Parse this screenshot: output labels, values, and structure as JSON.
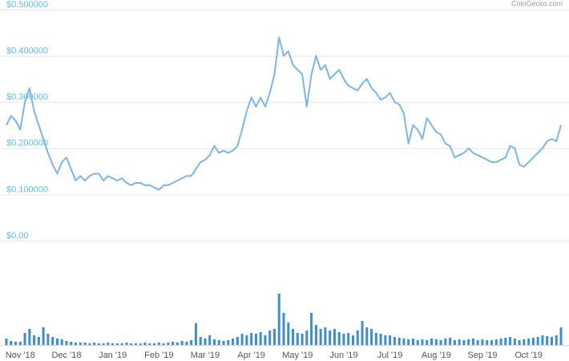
{
  "chart_data": {
    "type": "line",
    "source": "CoinGecko.com",
    "categories": [
      null,
      null,
      null,
      "Nov '18",
      null,
      null,
      null,
      null,
      null,
      null,
      null,
      null,
      null,
      "Dec '18",
      null,
      null,
      null,
      null,
      null,
      null,
      null,
      null,
      null,
      "Jan '19",
      null,
      null,
      null,
      null,
      null,
      null,
      null,
      null,
      null,
      "Feb '19",
      null,
      null,
      null,
      null,
      null,
      null,
      null,
      null,
      null,
      "Mar '19",
      null,
      null,
      null,
      null,
      null,
      null,
      null,
      null,
      null,
      "Apr '19",
      null,
      null,
      null,
      null,
      null,
      null,
      null,
      null,
      null,
      "May '19",
      null,
      null,
      null,
      null,
      null,
      null,
      null,
      null,
      null,
      "Jun '19",
      null,
      null,
      null,
      null,
      null,
      null,
      null,
      null,
      null,
      "Jul '19",
      null,
      null,
      null,
      null,
      null,
      null,
      null,
      null,
      null,
      "Aug '19",
      null,
      null,
      null,
      null,
      null,
      null,
      null,
      null,
      null,
      "Sep '19",
      null,
      null,
      null,
      null,
      null,
      null,
      null,
      null,
      null,
      "Oct '19",
      null,
      null,
      null,
      null,
      null,
      null,
      null
    ],
    "series": [
      {
        "name": "Price",
        "color": "#7cb5ec",
        "values": [
          0.25,
          0.27,
          0.26,
          0.24,
          0.3,
          0.33,
          0.28,
          0.25,
          0.22,
          0.19,
          0.165,
          0.145,
          0.17,
          0.18,
          0.155,
          0.13,
          0.14,
          0.13,
          0.14,
          0.145,
          0.145,
          0.13,
          0.14,
          0.135,
          0.13,
          0.135,
          0.125,
          0.12,
          0.125,
          0.125,
          0.12,
          0.12,
          0.115,
          0.11,
          0.12,
          0.12,
          0.125,
          0.13,
          0.135,
          0.14,
          0.14,
          0.155,
          0.17,
          0.175,
          0.185,
          0.205,
          0.19,
          0.195,
          0.19,
          0.195,
          0.205,
          0.24,
          0.28,
          0.31,
          0.29,
          0.31,
          0.29,
          0.32,
          0.36,
          0.44,
          0.4,
          0.41,
          0.38,
          0.37,
          0.36,
          0.29,
          0.36,
          0.4,
          0.37,
          0.38,
          0.35,
          0.36,
          0.37,
          0.35,
          0.335,
          0.33,
          0.325,
          0.34,
          0.35,
          0.33,
          0.32,
          0.305,
          0.31,
          0.32,
          0.3,
          0.295,
          0.275,
          0.21,
          0.25,
          0.24,
          0.22,
          0.265,
          0.25,
          0.235,
          0.23,
          0.21,
          0.205,
          0.18,
          0.185,
          0.19,
          0.2,
          0.19,
          0.185,
          0.18,
          0.175,
          0.17,
          0.17,
          0.175,
          0.18,
          0.205,
          0.2,
          0.165,
          0.16,
          0.17,
          0.18,
          0.19,
          0.2,
          0.215,
          0.22,
          0.215,
          0.25
        ]
      },
      {
        "name": "Volume",
        "color": "#3f8dcb",
        "axis": "y2",
        "values": [
          8,
          5,
          4,
          4,
          15,
          20,
          12,
          10,
          22,
          14,
          10,
          8,
          7,
          5,
          4,
          3,
          3,
          3,
          2,
          3,
          2,
          2,
          3,
          2,
          2,
          2,
          3,
          2,
          2,
          2,
          3,
          2,
          2,
          3,
          2,
          3,
          4,
          3,
          5,
          4,
          6,
          27,
          10,
          8,
          12,
          7,
          6,
          5,
          6,
          8,
          10,
          14,
          12,
          15,
          14,
          16,
          12,
          18,
          20,
          64,
          40,
          28,
          20,
          15,
          14,
          18,
          40,
          25,
          20,
          22,
          18,
          20,
          16,
          14,
          15,
          12,
          18,
          30,
          22,
          20,
          15,
          14,
          12,
          12,
          10,
          9,
          8,
          7,
          8,
          6,
          7,
          6,
          8,
          7,
          6,
          8,
          9,
          6,
          7,
          6,
          7,
          8,
          6,
          7,
          6,
          6,
          7,
          8,
          9,
          10,
          8,
          6,
          7,
          8,
          9,
          10,
          12,
          11,
          10,
          12,
          22
        ]
      }
    ],
    "ylim": [
      0,
      0.5
    ],
    "yticks": [
      {
        "value": 0,
        "label": "$0.00"
      },
      {
        "value": 0.1,
        "label": "$0.100000"
      },
      {
        "value": 0.2,
        "label": "$0.200000"
      },
      {
        "value": 0.3,
        "label": "$0.300000"
      },
      {
        "value": 0.4,
        "label": "$0.400000"
      },
      {
        "value": 0.5,
        "label": "$0.500000"
      }
    ],
    "y2lim": [
      0,
      70
    ],
    "grid": true
  }
}
